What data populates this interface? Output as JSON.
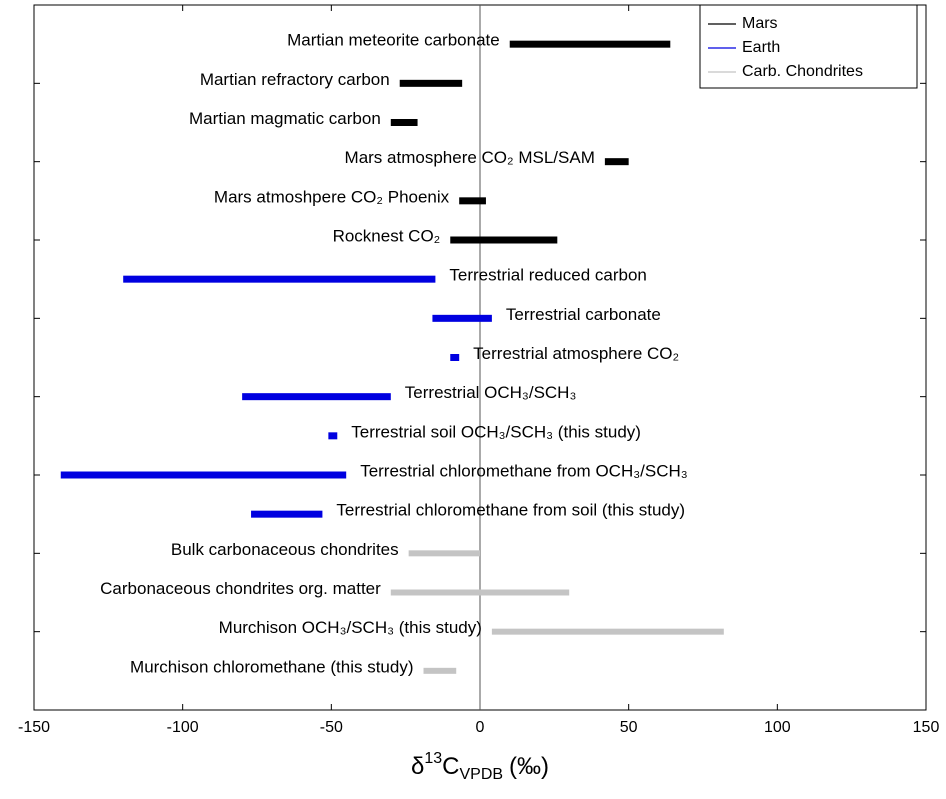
{
  "chart_data": {
    "type": "range_bar",
    "xlabel": [
      "δ",
      "13",
      "C",
      "VPDB",
      "(‰)"
    ],
    "xlim": [
      -150,
      150
    ],
    "xticks": [
      -150,
      -100,
      -50,
      0,
      50,
      100,
      150
    ],
    "zero_line": true,
    "legend": "upper right",
    "series": [
      {
        "name": "Mars",
        "color": "#000000",
        "categories": [
          "Martian meteorite carbonate",
          "Martian refractory carbon",
          "Martian magmatic carbon",
          "Mars atmosphere CO₂ MSL/SAM",
          "Mars atmoshpere CO₂ Phoenix",
          "Rocknest CO₂"
        ],
        "values": [
          [
            10,
            64
          ],
          [
            -27,
            -6
          ],
          [
            -30,
            -21
          ],
          [
            42,
            50
          ],
          [
            -7,
            2
          ],
          [
            -10,
            26
          ]
        ]
      },
      {
        "name": "Earth",
        "color": "#0000e0",
        "categories": [
          "Terrestrial reduced carbon",
          "Terrestrial carbonate",
          "Terrestrial atmosphere CO₂",
          "Terrestrial OCH₃/SCH₃",
          "Terrestrial soil OCH₃/SCH₃ (this study)",
          "Terrestrial chloromethane from OCH₃/SCH₃",
          "Terrestrial chloromethane from soil (this study)"
        ],
        "values": [
          [
            -120,
            -15
          ],
          [
            -16,
            4
          ],
          [
            -10,
            -7
          ],
          [
            -80,
            -30
          ],
          [
            -51,
            -48
          ],
          [
            -141,
            -45
          ],
          [
            -77,
            -53
          ]
        ]
      },
      {
        "name": "Carb. Chondrites",
        "color": "#c4c4c4",
        "categories": [
          "Bulk carbonaceous chondrites",
          "Carbonaceous chondrites org. matter",
          "Murchison OCH₃/SCH₃ (this study)",
          "Murchison chloromethane (this study)"
        ],
        "values": [
          [
            -24,
            0
          ],
          [
            -30,
            30
          ],
          [
            4,
            82
          ],
          [
            -19,
            -8
          ]
        ]
      }
    ]
  }
}
